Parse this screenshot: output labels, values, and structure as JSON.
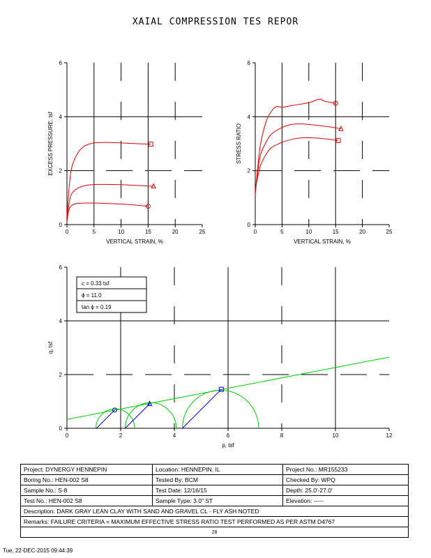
{
  "title": "XAIAL COMPRESSION TES REPOR",
  "chart_data": [
    {
      "type": "line",
      "id": "excess-pressure",
      "xlabel": "VERTICAL STRAIN, %",
      "ylabel": "EXCESS PRESSURE, tsf",
      "xlim": [
        0,
        25
      ],
      "ylim": [
        0,
        6
      ],
      "xticks": [
        0,
        5,
        10,
        15,
        20,
        25
      ],
      "yticks": [
        0,
        2,
        4,
        6
      ],
      "series": [
        {
          "marker": "square",
          "points": [
            [
              0,
              0.3
            ],
            [
              0.5,
              1.6
            ],
            [
              1,
              2.2
            ],
            [
              2,
              2.65
            ],
            [
              3,
              2.88
            ],
            [
              4,
              2.98
            ],
            [
              5,
              3.03
            ],
            [
              7,
              3.05
            ],
            [
              10,
              3.03
            ],
            [
              13,
              3.0
            ],
            [
              15.5,
              2.98
            ]
          ]
        },
        {
          "marker": "triangle",
          "points": [
            [
              0,
              0.2
            ],
            [
              0.5,
              0.9
            ],
            [
              1,
              1.18
            ],
            [
              2,
              1.35
            ],
            [
              3,
              1.43
            ],
            [
              4,
              1.47
            ],
            [
              6,
              1.49
            ],
            [
              10,
              1.48
            ],
            [
              13,
              1.45
            ],
            [
              16,
              1.42
            ]
          ]
        },
        {
          "marker": "circle",
          "points": [
            [
              0,
              0.1
            ],
            [
              0.3,
              0.5
            ],
            [
              0.7,
              0.68
            ],
            [
              1.5,
              0.77
            ],
            [
              3,
              0.8
            ],
            [
              5,
              0.8
            ],
            [
              8,
              0.78
            ],
            [
              11,
              0.75
            ],
            [
              15,
              0.68
            ]
          ]
        }
      ]
    },
    {
      "type": "line",
      "id": "stress-ratio",
      "xlabel": "VERTICAL STRAIN, %",
      "ylabel": "STRESS RATIO",
      "xlim": [
        0,
        25
      ],
      "ylim": [
        0,
        6
      ],
      "xticks": [
        0,
        5,
        10,
        15,
        20,
        25
      ],
      "yticks": [
        0,
        2,
        4,
        6
      ],
      "series": [
        {
          "marker": "circle",
          "points": [
            [
              0,
              1.1
            ],
            [
              0.5,
              2.2
            ],
            [
              1,
              3.0
            ],
            [
              2,
              3.8
            ],
            [
              3,
              4.2
            ],
            [
              4,
              4.38
            ],
            [
              5,
              4.35
            ],
            [
              7,
              4.42
            ],
            [
              10,
              4.52
            ],
            [
              12,
              4.65
            ],
            [
              13,
              4.57
            ],
            [
              15,
              4.5
            ]
          ]
        },
        {
          "marker": "triangle",
          "points": [
            [
              0,
              1.2
            ],
            [
              0.5,
              2.0
            ],
            [
              1,
              2.6
            ],
            [
              2,
              3.05
            ],
            [
              3,
              3.35
            ],
            [
              5,
              3.6
            ],
            [
              7,
              3.72
            ],
            [
              9,
              3.73
            ],
            [
              12,
              3.67
            ],
            [
              14,
              3.62
            ],
            [
              16,
              3.55
            ]
          ]
        },
        {
          "marker": "square",
          "points": [
            [
              0,
              1.3
            ],
            [
              0.5,
              1.8
            ],
            [
              1,
              2.2
            ],
            [
              2,
              2.6
            ],
            [
              3,
              2.85
            ],
            [
              5,
              3.05
            ],
            [
              7,
              3.17
            ],
            [
              9,
              3.22
            ],
            [
              12,
              3.2
            ],
            [
              15.5,
              3.12
            ]
          ]
        }
      ]
    },
    {
      "type": "scatter",
      "id": "pq-plot",
      "xlabel": "p, tsf",
      "ylabel": "q, tsf",
      "xlim": [
        0,
        12
      ],
      "ylim": [
        0,
        6
      ],
      "xticks": [
        0,
        2,
        4,
        6,
        8,
        10,
        12
      ],
      "yticks": [
        0,
        2,
        4,
        6
      ],
      "failure_line": [
        [
          0,
          0.33
        ],
        [
          12,
          2.65
        ]
      ],
      "circles": [
        {
          "center": 1.8,
          "radius": 0.72
        },
        {
          "center": 3.12,
          "radius": 0.95
        },
        {
          "center": 5.72,
          "radius": 1.42
        }
      ],
      "stress_paths": [
        {
          "marker": "circle",
          "points": [
            [
              1.1,
              0
            ],
            [
              1.78,
              0.68
            ]
          ]
        },
        {
          "marker": "triangle",
          "points": [
            [
              2.17,
              0
            ],
            [
              3.08,
              0.91
            ]
          ]
        },
        {
          "marker": "square",
          "points": [
            [
              4.3,
              0
            ],
            [
              5.75,
              1.45
            ]
          ]
        }
      ],
      "params": [
        "c = 0.33 tsf",
        "ϕ = 11.0",
        "tan ϕ = 0.19"
      ]
    }
  ],
  "info": {
    "project": "Project: DYNERGY HENNEPIN",
    "location": "Location: HENNEPIN, IL",
    "project_no": "Project No.: MR155233",
    "boring_no": "Boring No.: HEN-002 S8",
    "tested_by": "Tested By: BCM",
    "checked_by": "Checked By: WPQ",
    "sample_no": "Sample No.: S-8",
    "test_date": "Test Date: 12/16/15",
    "depth": "Depth: 25.0'-27.0'",
    "test_no": "Test No.: HEN-002 S8",
    "sample_type": "Sample Type: 3.0\" ST",
    "elevation": "Elevation: -----",
    "description": "Description: DARK GRAY LEAN CLAY WITH SAND AND GRAVEL CL - FLY ASH NOTED",
    "remarks": "Remarks: FAILURE CRITERIA = MAXIMUM EFFECTIVE STRESS RATIO TEST PERFORMED AS PER ASTM D4767",
    "footer_code": "28"
  },
  "timestamp": "Tue, 22-DEC-2015 09:44:39"
}
